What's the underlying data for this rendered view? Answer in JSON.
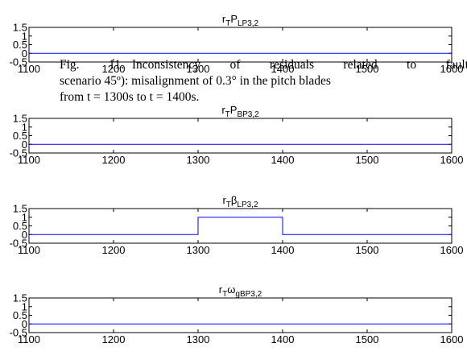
{
  "caption": {
    "label": "Fig. 11.",
    "line1": "Inconsistency of residuals related to fault",
    "line2": "scenario 45º): misalignment of 0.3° in the pitch blades",
    "line3": "from t = 1300s to t = 1400s."
  },
  "chart_data": [
    {
      "type": "line",
      "title_base": "r",
      "title_sub1": "T",
      "title_main": "P",
      "title_sub2": "LP3,2",
      "x": [
        1100,
        1600
      ],
      "y": [
        0,
        0
      ],
      "xlim": [
        1100,
        1600
      ],
      "ylim": [
        -0.5,
        1.5
      ],
      "xticks": [
        1100,
        1200,
        1300,
        1400,
        1500,
        1600
      ],
      "yticks": [
        -0.5,
        0,
        0.5,
        1,
        1.5
      ],
      "line_color": "#0000ff",
      "grid": false
    },
    {
      "type": "line",
      "title_base": "r",
      "title_sub1": "T",
      "title_main": "P",
      "title_sub2": "BP3,2",
      "x": [
        1100,
        1600
      ],
      "y": [
        0,
        0
      ],
      "xlim": [
        1100,
        1600
      ],
      "ylim": [
        -0.5,
        1.5
      ],
      "xticks": [
        1100,
        1200,
        1300,
        1400,
        1500,
        1600
      ],
      "yticks": [
        -0.5,
        0,
        0.5,
        1,
        1.5
      ],
      "line_color": "#0000ff",
      "grid": false
    },
    {
      "type": "line",
      "title_base": "r",
      "title_sub1": "T",
      "title_main": "β",
      "title_sub2": "LP3,2",
      "x": [
        1100,
        1300,
        1300,
        1400,
        1400,
        1600
      ],
      "y": [
        0,
        0,
        1,
        1,
        0,
        0
      ],
      "xlim": [
        1100,
        1600
      ],
      "ylim": [
        -0.5,
        1.5
      ],
      "xticks": [
        1100,
        1200,
        1300,
        1400,
        1500,
        1600
      ],
      "yticks": [
        -0.5,
        0,
        0.5,
        1,
        1.5
      ],
      "line_color": "#0000ff",
      "grid": false
    },
    {
      "type": "line",
      "title_base": "r",
      "title_sub1": "T",
      "title_main": "ω",
      "title_sub2": "gBP3,2",
      "x": [
        1100,
        1600
      ],
      "y": [
        0,
        0
      ],
      "xlim": [
        1100,
        1600
      ],
      "ylim": [
        -0.5,
        1.5
      ],
      "xticks": [
        1100,
        1200,
        1300,
        1400,
        1500,
        1600
      ],
      "yticks": [
        -0.5,
        0,
        0.5,
        1,
        1.5
      ],
      "line_color": "#0000ff",
      "grid": false
    }
  ]
}
